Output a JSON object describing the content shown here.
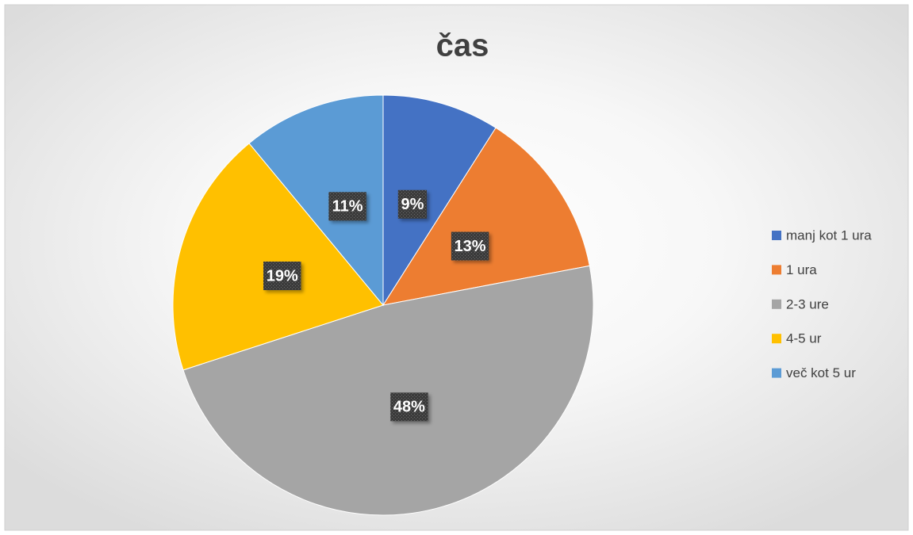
{
  "chart_data": {
    "type": "pie",
    "title": "čas",
    "categories": [
      "manj kot 1 ura",
      "1 ura",
      "2-3 ure",
      "4-5 ur",
      "več kot 5 ur"
    ],
    "values": [
      9,
      13,
      48,
      19,
      11
    ],
    "value_labels": [
      "9%",
      "13%",
      "48%",
      "19%",
      "11%"
    ],
    "colors": [
      "#4472c4",
      "#ed7d31",
      "#a5a5a5",
      "#ffc000",
      "#5b9bd5"
    ],
    "legend": "right"
  }
}
